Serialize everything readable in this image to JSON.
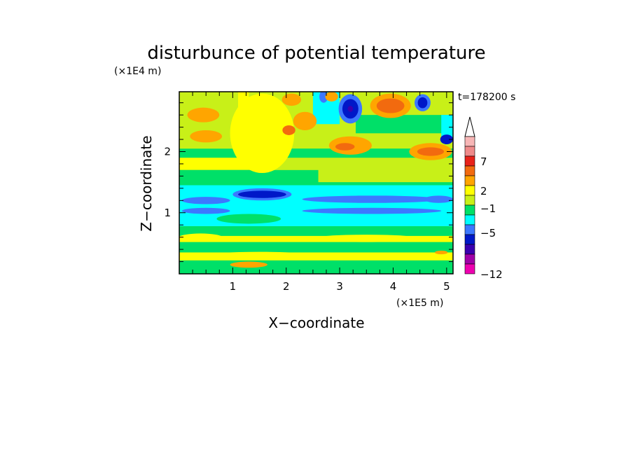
{
  "chart_data": {
    "type": "heatmap",
    "title": "disturbunce of potential temperature",
    "xlabel": "X−coordinate",
    "ylabel": "Z−coordinate",
    "x_unit": "(×1E5 m)",
    "y_unit": "(×1E4 m)",
    "time_label": "t=178200 s",
    "xlim": [
      0,
      5.12
    ],
    "ylim": [
      0,
      2.98
    ],
    "x_ticks": [
      {
        "value": 1,
        "label": "1"
      },
      {
        "value": 2,
        "label": "2"
      },
      {
        "value": 3,
        "label": "3"
      },
      {
        "value": 4,
        "label": "4"
      },
      {
        "value": 5,
        "label": "5"
      }
    ],
    "y_ticks": [
      {
        "value": 1,
        "label": "1"
      },
      {
        "value": 2,
        "label": "2"
      }
    ],
    "colorbar": {
      "labels": [
        "7",
        "2",
        "−1",
        "−5",
        "−12"
      ],
      "colors": [
        "#f7b6b6",
        "#ef8a8a",
        "#e8221a",
        "#f26a0f",
        "#ffa500",
        "#ffff00",
        "#c8f018",
        "#00e068",
        "#00ffff",
        "#3c78ff",
        "#0018c8",
        "#3a00b0",
        "#a000a8",
        "#ee00b0"
      ]
    },
    "regions": [
      {
        "x": [
          0,
          5.12
        ],
        "y": [
          0,
          2.98
        ],
        "color": "#ffff00"
      },
      {
        "x": [
          0,
          5.12
        ],
        "y": [
          0,
          0.22
        ],
        "color": "#00e068"
      },
      {
        "x": [
          0,
          5.12
        ],
        "y": [
          0.35,
          0.52
        ],
        "color": "#00e068"
      },
      {
        "x": [
          0,
          5.12
        ],
        "y": [
          0.62,
          0.78
        ],
        "color": "#00e068"
      },
      {
        "x": [
          0,
          5.12
        ],
        "y": [
          0.78,
          1.45
        ],
        "color": "#00ffff"
      },
      {
        "x": [
          0,
          5.12
        ],
        "y": [
          1.45,
          1.7
        ],
        "color": "#00e068"
      },
      {
        "x": [
          1.3,
          5.12
        ],
        "y": [
          1.7,
          2.98
        ],
        "color": "#c8f018"
      },
      {
        "x": [
          2.6,
          5.12
        ],
        "y": [
          1.5,
          1.9
        ],
        "color": "#c8f018"
      },
      {
        "x": [
          3.3,
          5.12
        ],
        "y": [
          2.3,
          2.6
        ],
        "color": "#00e068"
      },
      {
        "x": [
          0,
          5.12
        ],
        "y": [
          1.9,
          2.05
        ],
        "color": "#00e068"
      },
      {
        "x": [
          0,
          1.1
        ],
        "y": [
          2.05,
          2.98
        ],
        "color": "#c8f018"
      },
      {
        "x": [
          2.5,
          3.0
        ],
        "y": [
          2.45,
          2.98
        ],
        "color": "#00ffff"
      },
      {
        "x": [
          4.9,
          5.12
        ],
        "y": [
          2.2,
          2.6
        ],
        "color": "#00ffff"
      }
    ],
    "blobs": [
      {
        "x": 0.5,
        "y": 1.2,
        "rx": 0.45,
        "ry": 0.06,
        "color": "#3c78ff"
      },
      {
        "x": 0.5,
        "y": 1.03,
        "rx": 0.45,
        "ry": 0.05,
        "color": "#3c78ff"
      },
      {
        "x": 1.55,
        "y": 1.3,
        "rx": 0.55,
        "ry": 0.1,
        "color": "#3c78ff"
      },
      {
        "x": 1.55,
        "y": 1.3,
        "rx": 0.45,
        "ry": 0.06,
        "color": "#0018c8"
      },
      {
        "x": 3.6,
        "y": 1.22,
        "rx": 1.3,
        "ry": 0.06,
        "color": "#3c78ff"
      },
      {
        "x": 3.6,
        "y": 1.03,
        "rx": 1.3,
        "ry": 0.05,
        "color": "#3c78ff"
      },
      {
        "x": 4.85,
        "y": 1.22,
        "rx": 0.27,
        "ry": 0.06,
        "color": "#3c78ff"
      },
      {
        "x": 3.2,
        "y": 2.7,
        "rx": 0.22,
        "ry": 0.24,
        "color": "#3c78ff"
      },
      {
        "x": 3.2,
        "y": 2.7,
        "rx": 0.15,
        "ry": 0.16,
        "color": "#0018c8"
      },
      {
        "x": 3.2,
        "y": 2.7,
        "rx": 0.05,
        "ry": 0.05,
        "color": "#3a00b0"
      },
      {
        "x": 4.55,
        "y": 2.8,
        "rx": 0.15,
        "ry": 0.14,
        "color": "#3c78ff"
      },
      {
        "x": 4.55,
        "y": 2.8,
        "rx": 0.09,
        "ry": 0.09,
        "color": "#0018c8"
      },
      {
        "x": 5.0,
        "y": 2.2,
        "rx": 0.12,
        "ry": 0.08,
        "color": "#0018c8"
      },
      {
        "x": 2.7,
        "y": 2.9,
        "rx": 0.08,
        "ry": 0.1,
        "color": "#3c78ff"
      },
      {
        "x": 3.95,
        "y": 2.75,
        "rx": 0.38,
        "ry": 0.2,
        "color": "#ffa500"
      },
      {
        "x": 3.95,
        "y": 2.75,
        "rx": 0.26,
        "ry": 0.12,
        "color": "#f26a0f"
      },
      {
        "x": 3.2,
        "y": 2.1,
        "rx": 0.4,
        "ry": 0.15,
        "color": "#ffa500"
      },
      {
        "x": 3.1,
        "y": 2.08,
        "rx": 0.18,
        "ry": 0.06,
        "color": "#f26a0f"
      },
      {
        "x": 4.7,
        "y": 2.0,
        "rx": 0.4,
        "ry": 0.14,
        "color": "#ffa500"
      },
      {
        "x": 4.7,
        "y": 2.0,
        "rx": 0.25,
        "ry": 0.07,
        "color": "#f26a0f"
      },
      {
        "x": 1.55,
        "y": 2.3,
        "rx": 0.6,
        "ry": 0.65,
        "color": "#ffff00"
      },
      {
        "x": 0.45,
        "y": 2.6,
        "rx": 0.3,
        "ry": 0.12,
        "color": "#ffa500"
      },
      {
        "x": 0.5,
        "y": 2.25,
        "rx": 0.3,
        "ry": 0.1,
        "color": "#ffa500"
      },
      {
        "x": 2.35,
        "y": 2.5,
        "rx": 0.22,
        "ry": 0.15,
        "color": "#ffa500"
      },
      {
        "x": 2.1,
        "y": 2.85,
        "rx": 0.18,
        "ry": 0.1,
        "color": "#ffa500"
      },
      {
        "x": 2.05,
        "y": 2.35,
        "rx": 0.12,
        "ry": 0.08,
        "color": "#f26a0f"
      },
      {
        "x": 2.85,
        "y": 2.9,
        "rx": 0.12,
        "ry": 0.08,
        "color": "#ffa500"
      },
      {
        "x": 1.3,
        "y": 0.9,
        "rx": 0.6,
        "ry": 0.08,
        "color": "#00e068"
      },
      {
        "x": 0.4,
        "y": 0.6,
        "rx": 0.4,
        "ry": 0.06,
        "color": "#ffff00"
      },
      {
        "x": 3.5,
        "y": 0.58,
        "rx": 1.0,
        "ry": 0.06,
        "color": "#ffff00"
      },
      {
        "x": 1.5,
        "y": 0.3,
        "rx": 1.0,
        "ry": 0.06,
        "color": "#ffff00"
      },
      {
        "x": 4.2,
        "y": 0.3,
        "rx": 0.9,
        "ry": 0.05,
        "color": "#ffff00"
      },
      {
        "x": 1.3,
        "y": 0.15,
        "rx": 0.35,
        "ry": 0.05,
        "color": "#ffa500"
      },
      {
        "x": 4.9,
        "y": 0.35,
        "rx": 0.12,
        "ry": 0.03,
        "color": "#ffa500"
      }
    ]
  }
}
